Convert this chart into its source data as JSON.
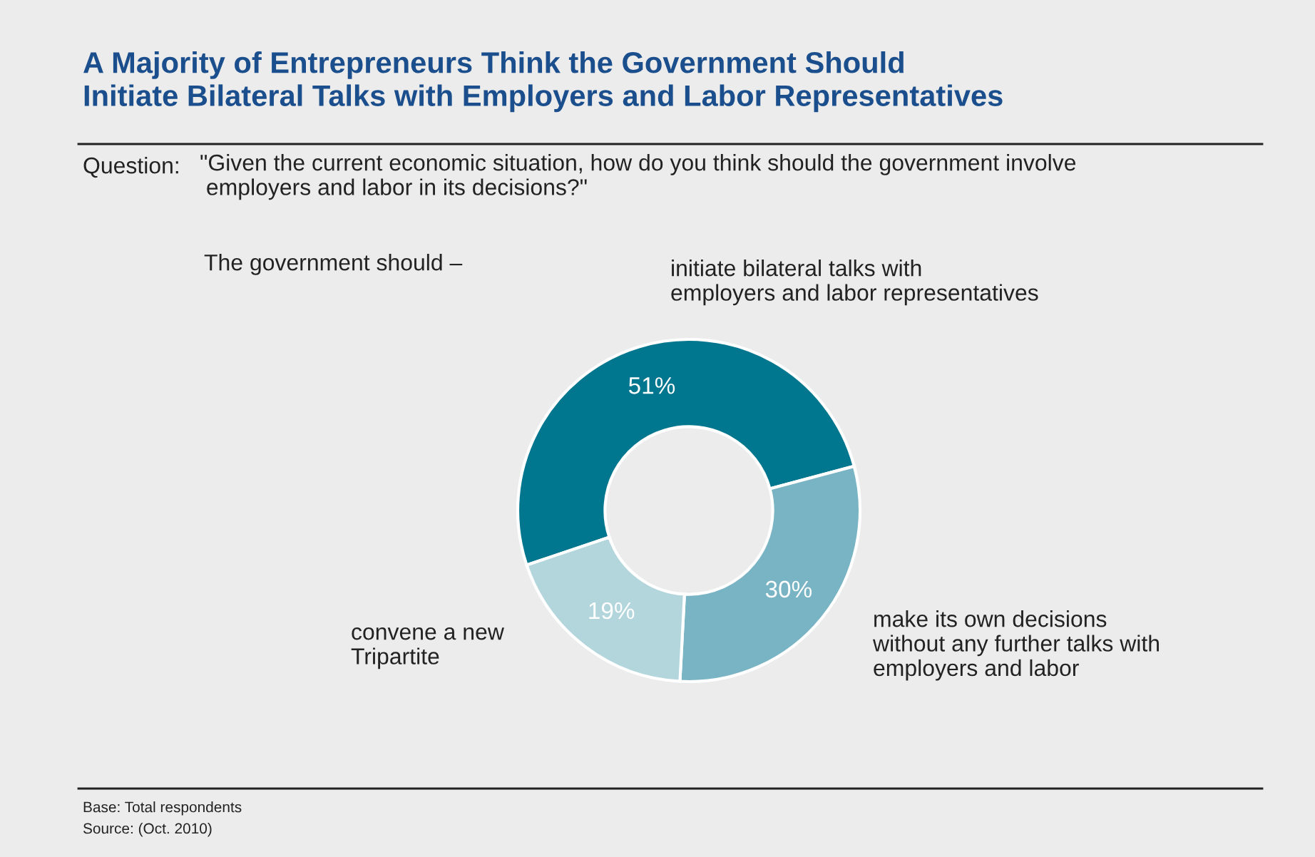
{
  "chart_data": {
    "type": "donut",
    "title": "A Majority of Entrepreneurs Think the Government Should\nInitiate Bilateral Talks with Employers and Labor Representatives",
    "subtitle": "\"Given the current economic situation, how do you think should the government involve\n employers and labor in its decisions?\"",
    "categories": [
      "initiate bilateral talks with\nemployers and labor representatives",
      "make its own decisions\nwithout any further talks with\nemployers and labor",
      "convene a new\nTripartite"
    ],
    "values": [
      51,
      30,
      19
    ],
    "colors": [
      "#00768f",
      "#78b4c3",
      "#b3d5dc"
    ],
    "value_labels": [
      "51%",
      "30%",
      "19%"
    ],
    "annotations": [
      "Question:",
      "The government should –",
      "Base: Total respondents",
      "Source: (Oct. 2010)"
    ]
  }
}
